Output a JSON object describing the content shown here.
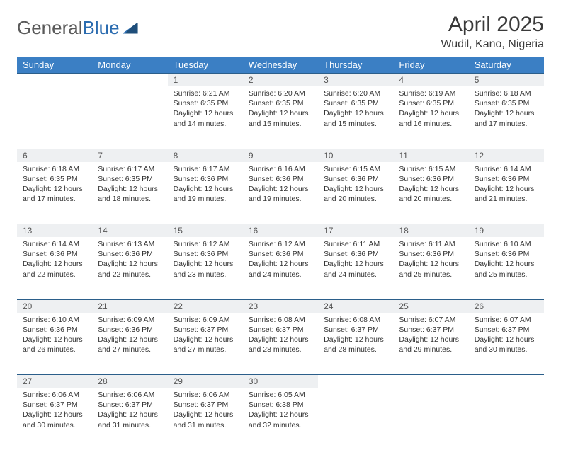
{
  "brand": {
    "part1": "General",
    "part2": "Blue"
  },
  "title": "April 2025",
  "location": "Wudil, Kano, Nigeria",
  "theme": {
    "header_bg": "#3b7fc4",
    "header_fg": "#ffffff",
    "daynum_bg": "#eef0f2",
    "rule_color": "#2b5e8a",
    "text_color": "#333333",
    "page_bg": "#ffffff"
  },
  "weekdays": [
    "Sunday",
    "Monday",
    "Tuesday",
    "Wednesday",
    "Thursday",
    "Friday",
    "Saturday"
  ],
  "weeks": [
    {
      "nums": [
        "",
        "",
        "1",
        "2",
        "3",
        "4",
        "5"
      ],
      "cells": [
        null,
        null,
        {
          "sr": "Sunrise: 6:21 AM",
          "ss": "Sunset: 6:35 PM",
          "d1": "Daylight: 12 hours",
          "d2": "and 14 minutes."
        },
        {
          "sr": "Sunrise: 6:20 AM",
          "ss": "Sunset: 6:35 PM",
          "d1": "Daylight: 12 hours",
          "d2": "and 15 minutes."
        },
        {
          "sr": "Sunrise: 6:20 AM",
          "ss": "Sunset: 6:35 PM",
          "d1": "Daylight: 12 hours",
          "d2": "and 15 minutes."
        },
        {
          "sr": "Sunrise: 6:19 AM",
          "ss": "Sunset: 6:35 PM",
          "d1": "Daylight: 12 hours",
          "d2": "and 16 minutes."
        },
        {
          "sr": "Sunrise: 6:18 AM",
          "ss": "Sunset: 6:35 PM",
          "d1": "Daylight: 12 hours",
          "d2": "and 17 minutes."
        }
      ]
    },
    {
      "nums": [
        "6",
        "7",
        "8",
        "9",
        "10",
        "11",
        "12"
      ],
      "cells": [
        {
          "sr": "Sunrise: 6:18 AM",
          "ss": "Sunset: 6:35 PM",
          "d1": "Daylight: 12 hours",
          "d2": "and 17 minutes."
        },
        {
          "sr": "Sunrise: 6:17 AM",
          "ss": "Sunset: 6:35 PM",
          "d1": "Daylight: 12 hours",
          "d2": "and 18 minutes."
        },
        {
          "sr": "Sunrise: 6:17 AM",
          "ss": "Sunset: 6:36 PM",
          "d1": "Daylight: 12 hours",
          "d2": "and 19 minutes."
        },
        {
          "sr": "Sunrise: 6:16 AM",
          "ss": "Sunset: 6:36 PM",
          "d1": "Daylight: 12 hours",
          "d2": "and 19 minutes."
        },
        {
          "sr": "Sunrise: 6:15 AM",
          "ss": "Sunset: 6:36 PM",
          "d1": "Daylight: 12 hours",
          "d2": "and 20 minutes."
        },
        {
          "sr": "Sunrise: 6:15 AM",
          "ss": "Sunset: 6:36 PM",
          "d1": "Daylight: 12 hours",
          "d2": "and 20 minutes."
        },
        {
          "sr": "Sunrise: 6:14 AM",
          "ss": "Sunset: 6:36 PM",
          "d1": "Daylight: 12 hours",
          "d2": "and 21 minutes."
        }
      ]
    },
    {
      "nums": [
        "13",
        "14",
        "15",
        "16",
        "17",
        "18",
        "19"
      ],
      "cells": [
        {
          "sr": "Sunrise: 6:14 AM",
          "ss": "Sunset: 6:36 PM",
          "d1": "Daylight: 12 hours",
          "d2": "and 22 minutes."
        },
        {
          "sr": "Sunrise: 6:13 AM",
          "ss": "Sunset: 6:36 PM",
          "d1": "Daylight: 12 hours",
          "d2": "and 22 minutes."
        },
        {
          "sr": "Sunrise: 6:12 AM",
          "ss": "Sunset: 6:36 PM",
          "d1": "Daylight: 12 hours",
          "d2": "and 23 minutes."
        },
        {
          "sr": "Sunrise: 6:12 AM",
          "ss": "Sunset: 6:36 PM",
          "d1": "Daylight: 12 hours",
          "d2": "and 24 minutes."
        },
        {
          "sr": "Sunrise: 6:11 AM",
          "ss": "Sunset: 6:36 PM",
          "d1": "Daylight: 12 hours",
          "d2": "and 24 minutes."
        },
        {
          "sr": "Sunrise: 6:11 AM",
          "ss": "Sunset: 6:36 PM",
          "d1": "Daylight: 12 hours",
          "d2": "and 25 minutes."
        },
        {
          "sr": "Sunrise: 6:10 AM",
          "ss": "Sunset: 6:36 PM",
          "d1": "Daylight: 12 hours",
          "d2": "and 25 minutes."
        }
      ]
    },
    {
      "nums": [
        "20",
        "21",
        "22",
        "23",
        "24",
        "25",
        "26"
      ],
      "cells": [
        {
          "sr": "Sunrise: 6:10 AM",
          "ss": "Sunset: 6:36 PM",
          "d1": "Daylight: 12 hours",
          "d2": "and 26 minutes."
        },
        {
          "sr": "Sunrise: 6:09 AM",
          "ss": "Sunset: 6:36 PM",
          "d1": "Daylight: 12 hours",
          "d2": "and 27 minutes."
        },
        {
          "sr": "Sunrise: 6:09 AM",
          "ss": "Sunset: 6:37 PM",
          "d1": "Daylight: 12 hours",
          "d2": "and 27 minutes."
        },
        {
          "sr": "Sunrise: 6:08 AM",
          "ss": "Sunset: 6:37 PM",
          "d1": "Daylight: 12 hours",
          "d2": "and 28 minutes."
        },
        {
          "sr": "Sunrise: 6:08 AM",
          "ss": "Sunset: 6:37 PM",
          "d1": "Daylight: 12 hours",
          "d2": "and 28 minutes."
        },
        {
          "sr": "Sunrise: 6:07 AM",
          "ss": "Sunset: 6:37 PM",
          "d1": "Daylight: 12 hours",
          "d2": "and 29 minutes."
        },
        {
          "sr": "Sunrise: 6:07 AM",
          "ss": "Sunset: 6:37 PM",
          "d1": "Daylight: 12 hours",
          "d2": "and 30 minutes."
        }
      ]
    },
    {
      "nums": [
        "27",
        "28",
        "29",
        "30",
        "",
        "",
        ""
      ],
      "cells": [
        {
          "sr": "Sunrise: 6:06 AM",
          "ss": "Sunset: 6:37 PM",
          "d1": "Daylight: 12 hours",
          "d2": "and 30 minutes."
        },
        {
          "sr": "Sunrise: 6:06 AM",
          "ss": "Sunset: 6:37 PM",
          "d1": "Daylight: 12 hours",
          "d2": "and 31 minutes."
        },
        {
          "sr": "Sunrise: 6:06 AM",
          "ss": "Sunset: 6:37 PM",
          "d1": "Daylight: 12 hours",
          "d2": "and 31 minutes."
        },
        {
          "sr": "Sunrise: 6:05 AM",
          "ss": "Sunset: 6:38 PM",
          "d1": "Daylight: 12 hours",
          "d2": "and 32 minutes."
        },
        null,
        null,
        null
      ]
    }
  ]
}
